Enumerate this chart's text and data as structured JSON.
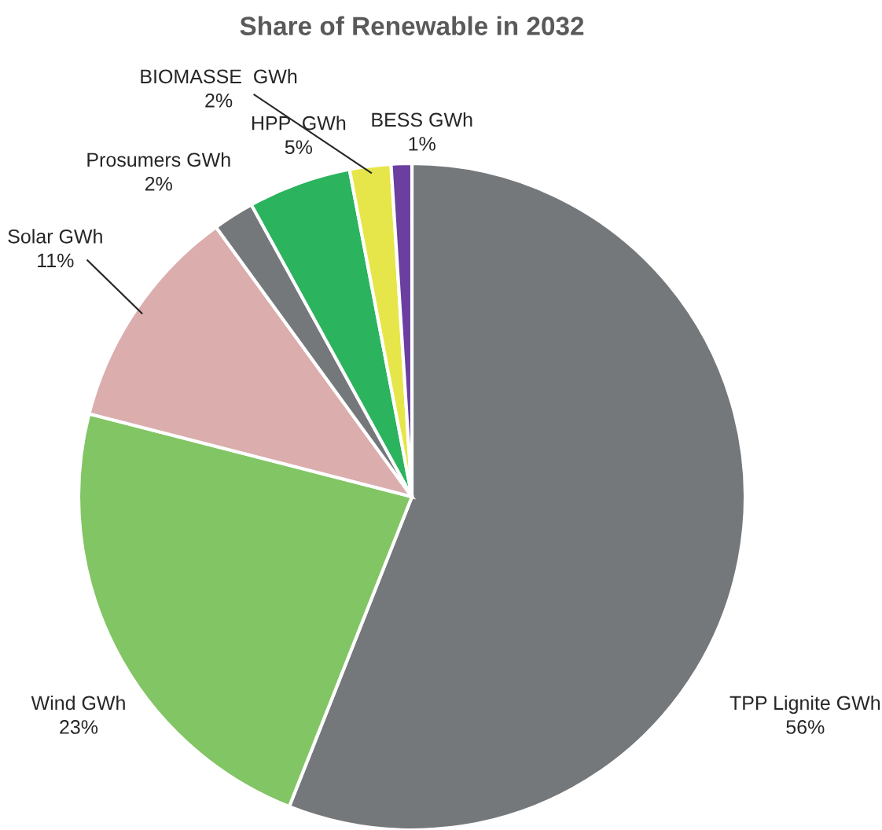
{
  "chart_data": {
    "type": "pie",
    "title": "Share of Renewable in 2032",
    "categories": [
      "TPP Lignite GWh",
      "Wind GWh",
      "Solar GWh",
      "Prosumers GWh",
      "HPP  GWh",
      "BIOMASSE  GWh",
      "BESS GWh"
    ],
    "values": [
      56,
      23,
      11,
      2,
      5,
      2,
      1
    ],
    "colors": [
      "#75787b",
      "#82c564",
      "#dbadad",
      "#75787b",
      "#2bb35e",
      "#e6e64a",
      "#6a3fa0"
    ],
    "value_labels": [
      "56%",
      "23%",
      "11%",
      "2%",
      "5%",
      "2%",
      "1%"
    ],
    "legend": false
  }
}
